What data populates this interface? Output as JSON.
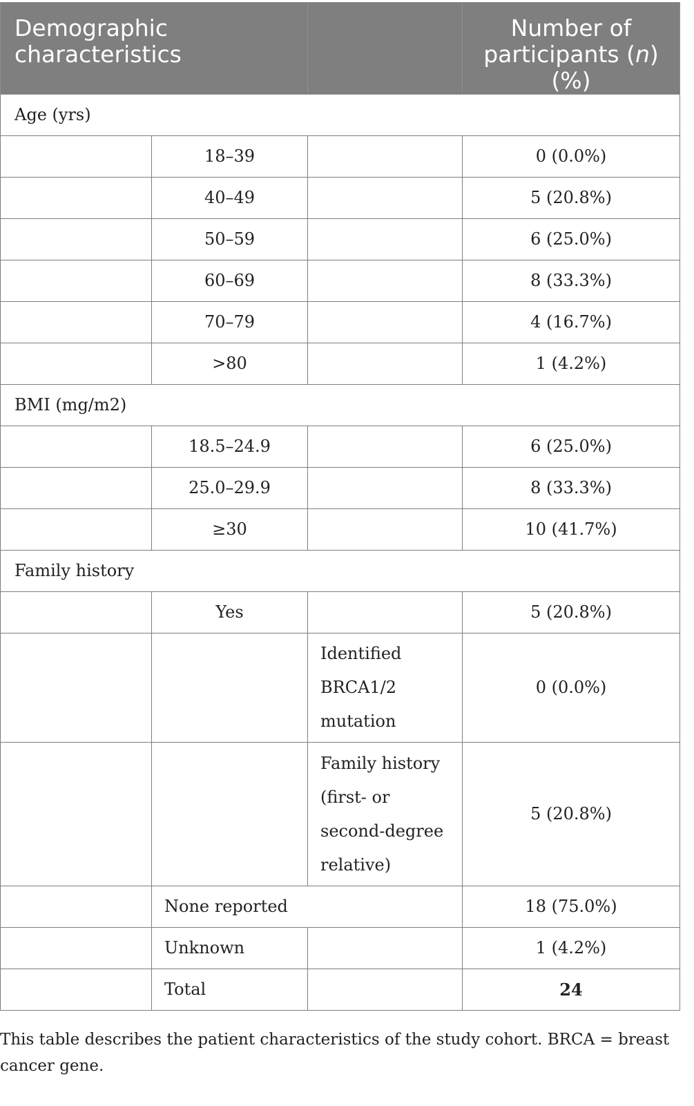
{
  "table": {
    "header": {
      "col1": "Demographic characteristics",
      "col2": "",
      "col3": "Number of participants (n) (%)"
    },
    "sections": {
      "age": {
        "label": "Age (yrs)",
        "rows": [
          {
            "category": "18–39",
            "value": "0 (0.0%)"
          },
          {
            "category": "40–49",
            "value": "5 (20.8%)"
          },
          {
            "category": "50–59",
            "value": "6 (25.0%)"
          },
          {
            "category": "60–69",
            "value": "8 (33.3%)"
          },
          {
            "category": "70–79",
            "value": "4 (16.7%)"
          },
          {
            "category": ">80",
            "value": "1 (4.2%)"
          }
        ]
      },
      "bmi": {
        "label": "BMI (mg/m2)",
        "rows": [
          {
            "category": "18.5–24.9",
            "value": "6 (25.0%)"
          },
          {
            "category": "25.0–29.9",
            "value": "8 (33.3%)"
          },
          {
            "category": "≥30",
            "value": "10 (41.7%)"
          }
        ]
      },
      "family": {
        "label": "Family history",
        "yes": {
          "category": "Yes",
          "value": "5 (20.8%)"
        },
        "brca": {
          "sub_lines": [
            "Identified",
            "BRCA1/2",
            "mutation"
          ],
          "value": "0 (0.0%)"
        },
        "history": {
          "sub_lines": [
            "Family history",
            "(first- or",
            "second-degree",
            "relative)"
          ],
          "value": "5 (20.8%)"
        },
        "none": {
          "category": "None reported",
          "value": "18 (75.0%)"
        },
        "unknown": {
          "category": "Unknown",
          "value": "1 (4.2%)"
        },
        "total": {
          "category": "Total",
          "value": "24"
        }
      }
    }
  },
  "footnote": "This table describes the patient characteristics of the study cohort. BRCA = breast cancer gene."
}
